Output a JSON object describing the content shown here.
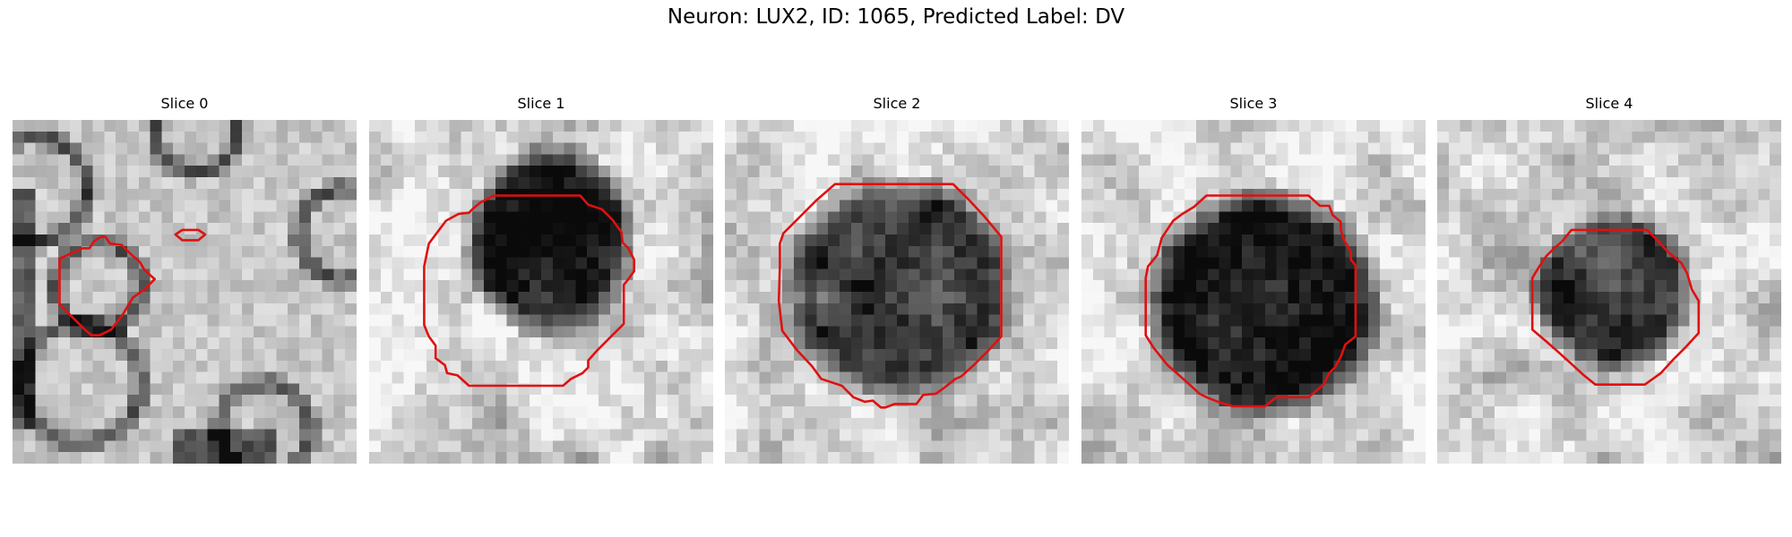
{
  "figure": {
    "title": "Neuron: LUX2, ID: 1065, Predicted Label: DV",
    "contour_color": "#e01010",
    "colormap": "grayscale"
  },
  "slices": [
    {
      "title": "Slice 0",
      "dark_blob": false
    },
    {
      "title": "Slice 1",
      "dark_blob": true
    },
    {
      "title": "Slice 2",
      "dark_blob": true
    },
    {
      "title": "Slice 3",
      "dark_blob": true
    },
    {
      "title": "Slice 4",
      "dark_blob": true
    }
  ]
}
